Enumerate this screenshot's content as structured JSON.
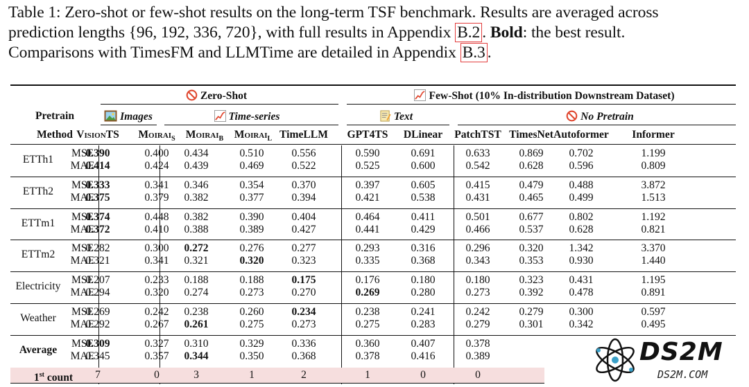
{
  "caption": {
    "label": "Table 1:",
    "line1": "Zero-shot or few-shot results on the long-term TSF benchmark. Results are averaged across",
    "line2_a": "prediction lengths {96, 192, 336, 720}, with full results in Appendix ",
    "ref1": "B.2",
    "line2_b": ". ",
    "bold_word": "Bold",
    "line2_c": ": the best result.",
    "line3_a": "Comparisons with TimesFM and LLMTime are detailed in Appendix ",
    "ref2": "B.3",
    "line3_b": "."
  },
  "header": {
    "zero_shot": "Zero-Shot",
    "few_shot": "Few-Shot (10% In-distribution Downstream Dataset)",
    "images": "Images",
    "time_series": "Time-series",
    "text": "Text",
    "no_pretrain": "No Pretrain",
    "pretrain": "Pretrain",
    "method": "Method",
    "moirai": "Moirai",
    "sub_s": "S",
    "sub_b": "B",
    "sub_l": "L",
    "models": [
      "VisionTS",
      "",
      "",
      "",
      "TimeLLM",
      "GPT4TS",
      "DLinear",
      "PatchTST",
      "TimesNet",
      "Autoformer",
      "Informer"
    ]
  },
  "icons": {
    "zero_shot": "no-entry-icon",
    "images": "framed-picture-icon",
    "time_series": "chart-increasing-icon",
    "text": "memo-icon",
    "no_pretrain": "no-entry-icon",
    "few_shot": "chart-increasing-icon"
  },
  "metrics": [
    "MSE",
    "MAE"
  ],
  "datasets": [
    {
      "name": "ETTh1",
      "mse": [
        "0.390",
        "0.400",
        "0.434",
        "0.510",
        "0.556",
        "0.590",
        "0.691",
        "0.633",
        "0.869",
        "0.702",
        "1.199"
      ],
      "mae": [
        "0.414",
        "0.424",
        "0.439",
        "0.469",
        "0.522",
        "0.525",
        "0.600",
        "0.542",
        "0.628",
        "0.596",
        "0.809"
      ],
      "bold_mse": [
        0
      ],
      "bold_mae": [
        0
      ]
    },
    {
      "name": "ETTh2",
      "mse": [
        "0.333",
        "0.341",
        "0.346",
        "0.354",
        "0.370",
        "0.397",
        "0.605",
        "0.415",
        "0.479",
        "0.488",
        "3.872"
      ],
      "mae": [
        "0.375",
        "0.379",
        "0.382",
        "0.377",
        "0.394",
        "0.421",
        "0.538",
        "0.431",
        "0.465",
        "0.499",
        "1.513"
      ],
      "bold_mse": [
        0
      ],
      "bold_mae": [
        0
      ]
    },
    {
      "name": "ETTm1",
      "mse": [
        "0.374",
        "0.448",
        "0.382",
        "0.390",
        "0.404",
        "0.464",
        "0.411",
        "0.501",
        "0.677",
        "0.802",
        "1.192"
      ],
      "mae": [
        "0.372",
        "0.410",
        "0.388",
        "0.389",
        "0.427",
        "0.441",
        "0.429",
        "0.466",
        "0.537",
        "0.628",
        "0.821"
      ],
      "bold_mse": [
        0
      ],
      "bold_mae": [
        0
      ]
    },
    {
      "name": "ETTm2",
      "mse": [
        "0.282",
        "0.300",
        "0.272",
        "0.276",
        "0.277",
        "0.293",
        "0.316",
        "0.296",
        "0.320",
        "1.342",
        "3.370"
      ],
      "mae": [
        "0.321",
        "0.341",
        "0.321",
        "0.320",
        "0.323",
        "0.335",
        "0.368",
        "0.343",
        "0.353",
        "0.930",
        "1.440"
      ],
      "bold_mse": [
        2
      ],
      "bold_mae": [
        3
      ]
    },
    {
      "name": "Electricity",
      "mse": [
        "0.207",
        "0.233",
        "0.188",
        "0.188",
        "0.175",
        "0.176",
        "0.180",
        "0.180",
        "0.323",
        "0.431",
        "1.195"
      ],
      "mae": [
        "0.294",
        "0.320",
        "0.274",
        "0.273",
        "0.270",
        "0.269",
        "0.280",
        "0.273",
        "0.392",
        "0.478",
        "0.891"
      ],
      "bold_mse": [
        4
      ],
      "bold_mae": [
        5
      ]
    },
    {
      "name": "Weather",
      "mse": [
        "0.269",
        "0.242",
        "0.238",
        "0.260",
        "0.234",
        "0.238",
        "0.241",
        "0.242",
        "0.279",
        "0.300",
        "0.597"
      ],
      "mae": [
        "0.292",
        "0.267",
        "0.261",
        "0.275",
        "0.273",
        "0.275",
        "0.283",
        "0.279",
        "0.301",
        "0.342",
        "0.495"
      ],
      "bold_mse": [
        4
      ],
      "bold_mae": [
        2
      ]
    },
    {
      "name": "Average",
      "bold_name": true,
      "mse": [
        "0.309",
        "0.327",
        "0.310",
        "0.329",
        "0.336",
        "0.360",
        "0.407",
        "0.378",
        "",
        "",
        ""
      ],
      "mae": [
        "0.345",
        "0.357",
        "0.344",
        "0.350",
        "0.368",
        "0.378",
        "0.416",
        "0.389",
        "",
        "",
        ""
      ],
      "bold_mse": [
        0
      ],
      "bold_mae": [
        2
      ]
    }
  ],
  "count_row": {
    "label": "1",
    "sup": "st",
    "label_suffix": " count",
    "values": [
      "7",
      "0",
      "3",
      "1",
      "2",
      "1",
      "0",
      "0",
      "",
      "",
      ""
    ]
  },
  "watermark": {
    "title": "DS2M",
    "subtitle": "DS2M.COM",
    "accent": "#3aa0c8"
  },
  "colors": {
    "highlight": "#f6dede",
    "ref_box": "#e23b3b"
  }
}
